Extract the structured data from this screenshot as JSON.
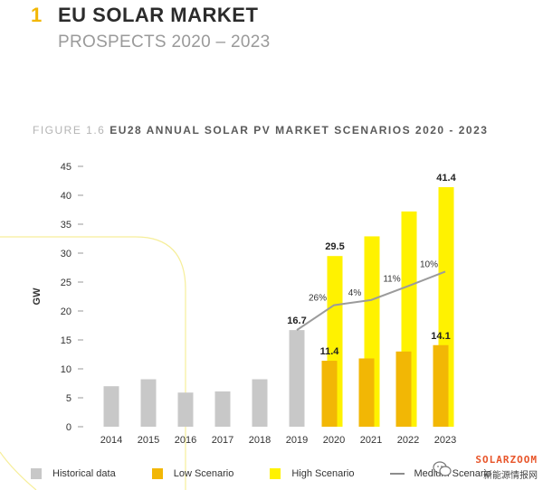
{
  "header": {
    "section_number": "1",
    "title": "EU SOLAR MARKET",
    "subtitle": "PROSPECTS 2020 – 2023"
  },
  "figure": {
    "label": "FIGURE 1.6",
    "title": "EU28 ANNUAL SOLAR PV MARKET SCENARIOS 2020 - 2023"
  },
  "legend": {
    "historical": "Historical data",
    "low": "Low Scenario",
    "high": "High Scenario",
    "medium": "Medium Scenario"
  },
  "watermark": {
    "brand": "SOLARZOOM",
    "chinese": "新能源情报网"
  },
  "colors": {
    "historical": "#c8c8c8",
    "low": "#f2b705",
    "high": "#fff200",
    "medium": "#9b9b9b",
    "accent": "#f2b705"
  },
  "chart_data": {
    "type": "bar",
    "title": "EU28 ANNUAL SOLAR PV MARKET SCENARIOS 2020 - 2023",
    "ylabel": "GW",
    "xlabel": "",
    "ylim": [
      0,
      45
    ],
    "yticks": [
      0,
      5,
      10,
      15,
      20,
      25,
      30,
      35,
      40,
      45
    ],
    "grid": false,
    "legend_position": "bottom",
    "categories": [
      "2014",
      "2015",
      "2016",
      "2017",
      "2018",
      "2019",
      "2020",
      "2021",
      "2022",
      "2023"
    ],
    "series": [
      {
        "name": "Historical data",
        "type": "bar",
        "values": [
          7.0,
          8.2,
          5.9,
          6.1,
          8.2,
          16.7,
          null,
          null,
          null,
          null
        ]
      },
      {
        "name": "High Scenario",
        "type": "bar",
        "values": [
          null,
          null,
          null,
          null,
          null,
          null,
          29.5,
          32.9,
          37.2,
          41.4
        ]
      },
      {
        "name": "Low Scenario",
        "type": "bar",
        "values": [
          null,
          null,
          null,
          null,
          null,
          null,
          11.4,
          11.8,
          13.0,
          14.1
        ]
      },
      {
        "name": "Medium Scenario",
        "type": "line",
        "values": [
          null,
          null,
          null,
          null,
          null,
          16.7,
          21.0,
          21.9,
          24.3,
          26.8
        ]
      }
    ],
    "data_labels": [
      {
        "category": "2019",
        "series": "Historical data",
        "text": "16.7"
      },
      {
        "category": "2020",
        "series": "High Scenario",
        "text": "29.5"
      },
      {
        "category": "2020",
        "series": "Low Scenario",
        "text": "11.4"
      },
      {
        "category": "2023",
        "series": "High Scenario",
        "text": "41.4"
      },
      {
        "category": "2023",
        "series": "Low Scenario",
        "text": "14.1"
      }
    ],
    "growth_labels": [
      {
        "category": "2020",
        "text": "26%"
      },
      {
        "category": "2021",
        "text": "4%"
      },
      {
        "category": "2022",
        "text": "11%"
      },
      {
        "category": "2023",
        "text": "10%"
      }
    ]
  }
}
